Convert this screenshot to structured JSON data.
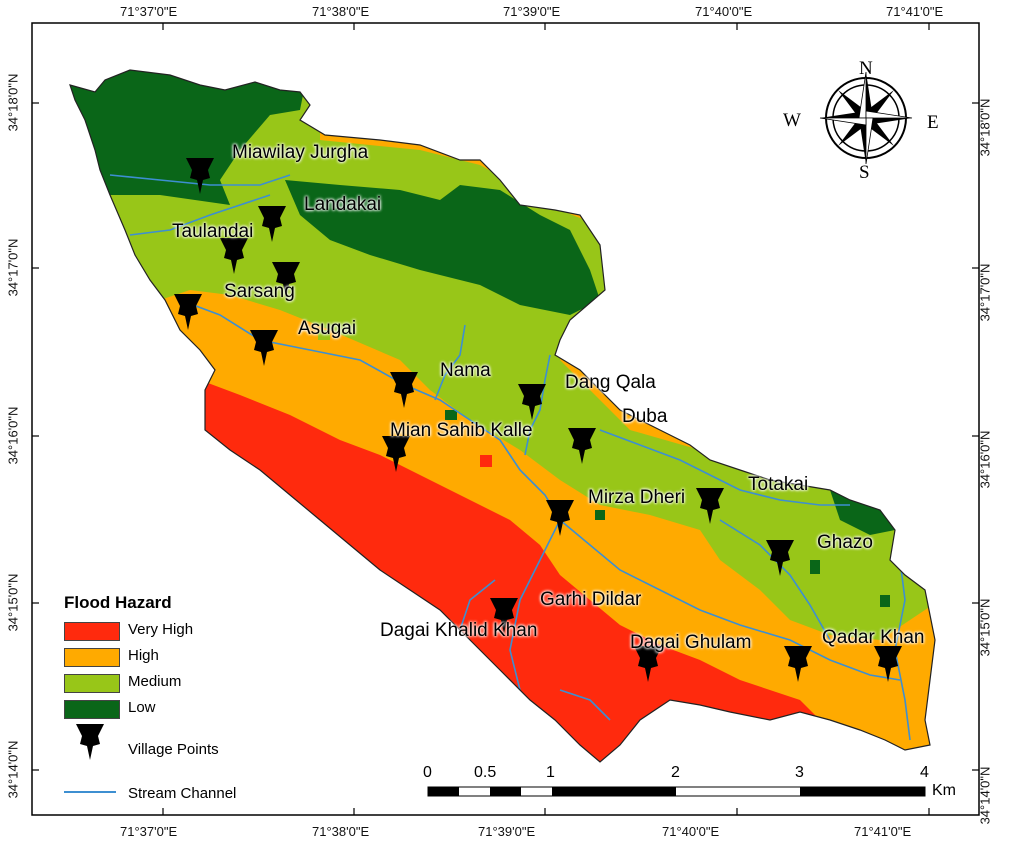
{
  "axes": {
    "top": [
      "71°37'0\"E",
      "71°38'0\"E",
      "71°39'0\"E",
      "71°40'0\"E",
      "71°41'0\"E"
    ],
    "bottom": [
      "71°37'0\"E",
      "71°38'0\"E",
      "71°39'0\"E",
      "71°40'0\"E",
      "71°41'0\"E"
    ],
    "left": [
      "34°18'0\"N",
      "34°17'0\"N",
      "34°16'0\"N",
      "34°15'0\"N",
      "34°14'0\"N"
    ],
    "right": [
      "34°18'0\"N",
      "34°17'0\"N",
      "34°16'0\"N",
      "34°15'0\"N",
      "34°14'0\"N"
    ]
  },
  "villages": [
    "Miawilay Jurgha",
    "Landakai",
    "Taulandai",
    "Sarsang",
    "Asugai",
    "Nama",
    "Dang Qala",
    "Duba",
    "Mian Sahib Kalle",
    "Totakai",
    "Mirza Dheri",
    "Ghazo",
    "Garhi Dildar",
    "Dagai Khalid Khan",
    "Dagai Ghulam",
    "Qadar Khan"
  ],
  "legend": {
    "title": "Flood Hazard",
    "classes": [
      {
        "label": "Very High",
        "color": "#ff2a0d"
      },
      {
        "label": "High",
        "color": "#ffaa00"
      },
      {
        "label": "Medium",
        "color": "#98c618"
      },
      {
        "label": "Low",
        "color": "#0a6618"
      }
    ],
    "village_points": "Village Points",
    "stream_channel": "Stream Channel",
    "stream_color": "#3d8fd1"
  },
  "compass": {
    "n": "N",
    "s": "S",
    "e": "E",
    "w": "W"
  },
  "scale_bar": {
    "ticks": [
      "0",
      "0.5",
      "1",
      "2",
      "3",
      "4"
    ],
    "unit": "Km"
  }
}
